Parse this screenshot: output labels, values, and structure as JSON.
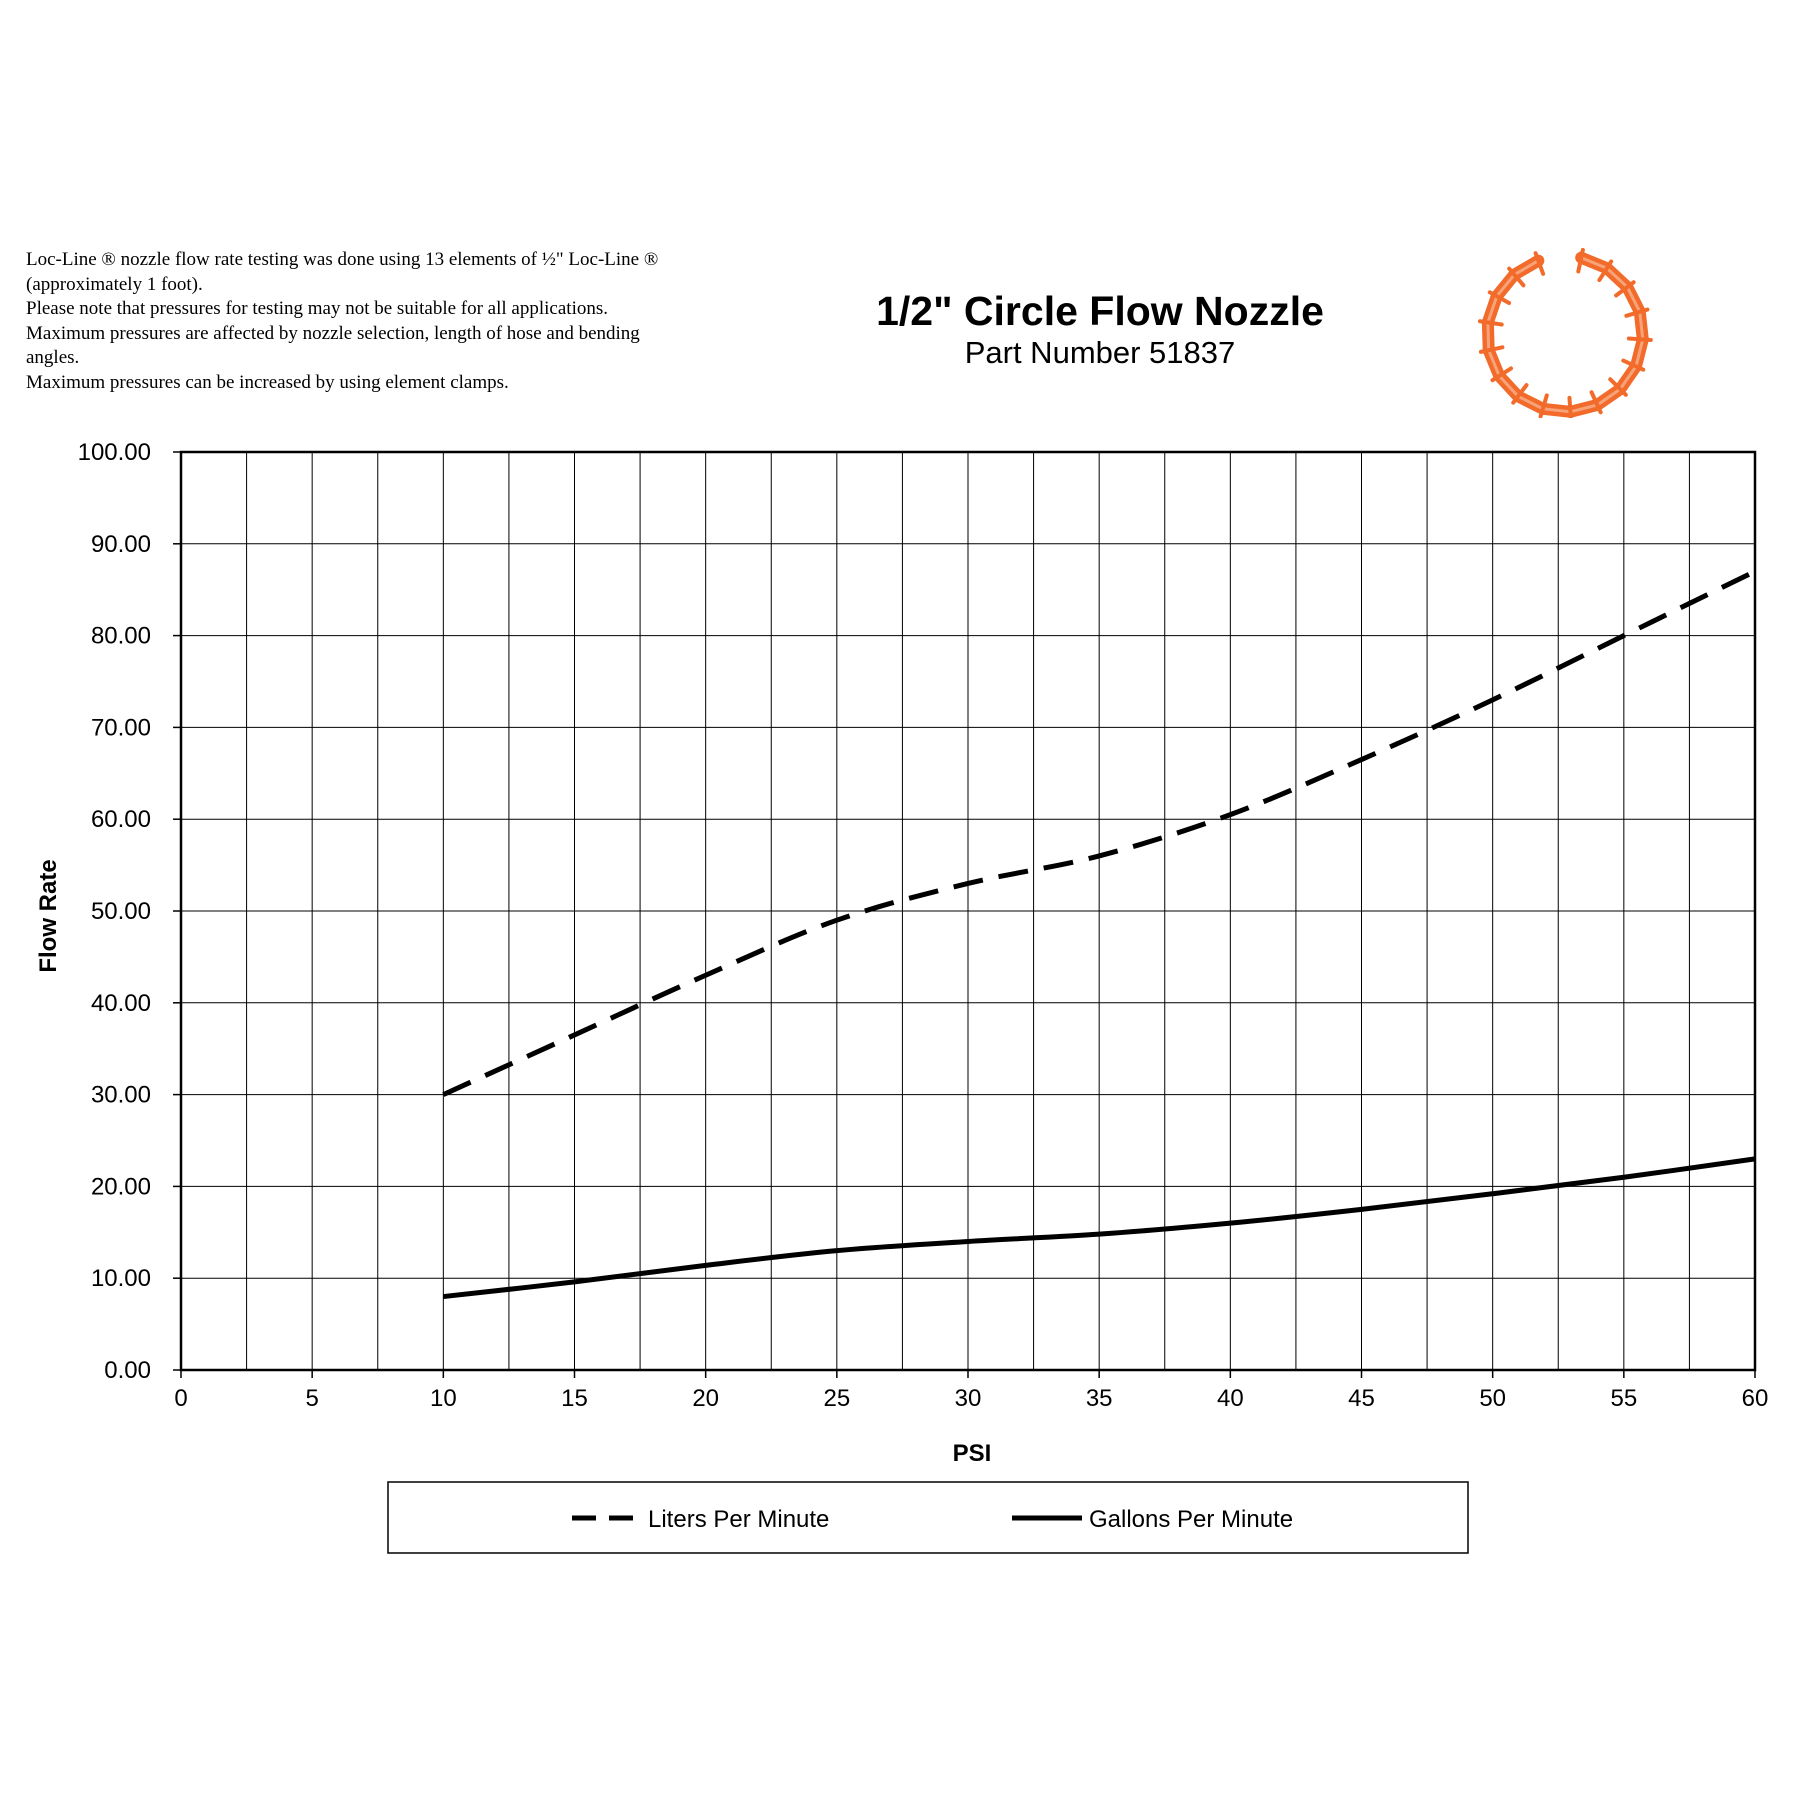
{
  "notes": [
    "Loc-Line ® nozzle flow rate testing was done using 13 elements of ½\" Loc-Line ®",
    "(approximately 1 foot).",
    "Please note that pressures for testing may not be suitable for all applications.",
    "Maximum pressures are affected by nozzle selection, length of hose and bending",
    "angles.",
    "Maximum pressures can be increased by using element clamps."
  ],
  "header": {
    "title": "1/2\" Circle Flow Nozzle",
    "subtitle": "Part Number 51837"
  },
  "logo": {
    "icon": "circle-flow-nozzle-icon",
    "color": "#f26b2a"
  },
  "chart_data": {
    "type": "line",
    "xlabel": "PSI",
    "ylabel": "Flow Rate",
    "xlim": [
      0,
      60
    ],
    "ylim": [
      0,
      100
    ],
    "xticks": [
      "0",
      "5",
      "10",
      "15",
      "20",
      "25",
      "30",
      "35",
      "40",
      "45",
      "50",
      "55",
      "60"
    ],
    "yticks": [
      "0.00",
      "10.00",
      "20.00",
      "30.00",
      "40.00",
      "50.00",
      "60.00",
      "70.00",
      "80.00",
      "90.00",
      "100.00"
    ],
    "grid": true,
    "legend_position": "bottom",
    "series": [
      {
        "name": "Liters Per Minute",
        "style": "dashed",
        "x": [
          10,
          15,
          20,
          25,
          30,
          35,
          40,
          45,
          50,
          55,
          60
        ],
        "y": [
          30,
          36.5,
          43,
          49,
          53,
          56,
          60.5,
          66.5,
          73,
          80,
          87
        ]
      },
      {
        "name": "Gallons Per Minute",
        "style": "solid",
        "x": [
          10,
          15,
          20,
          25,
          30,
          35,
          40,
          45,
          50,
          55,
          60
        ],
        "y": [
          8,
          9.6,
          11.4,
          13,
          14,
          14.8,
          16,
          17.5,
          19.2,
          21,
          23
        ]
      }
    ]
  }
}
